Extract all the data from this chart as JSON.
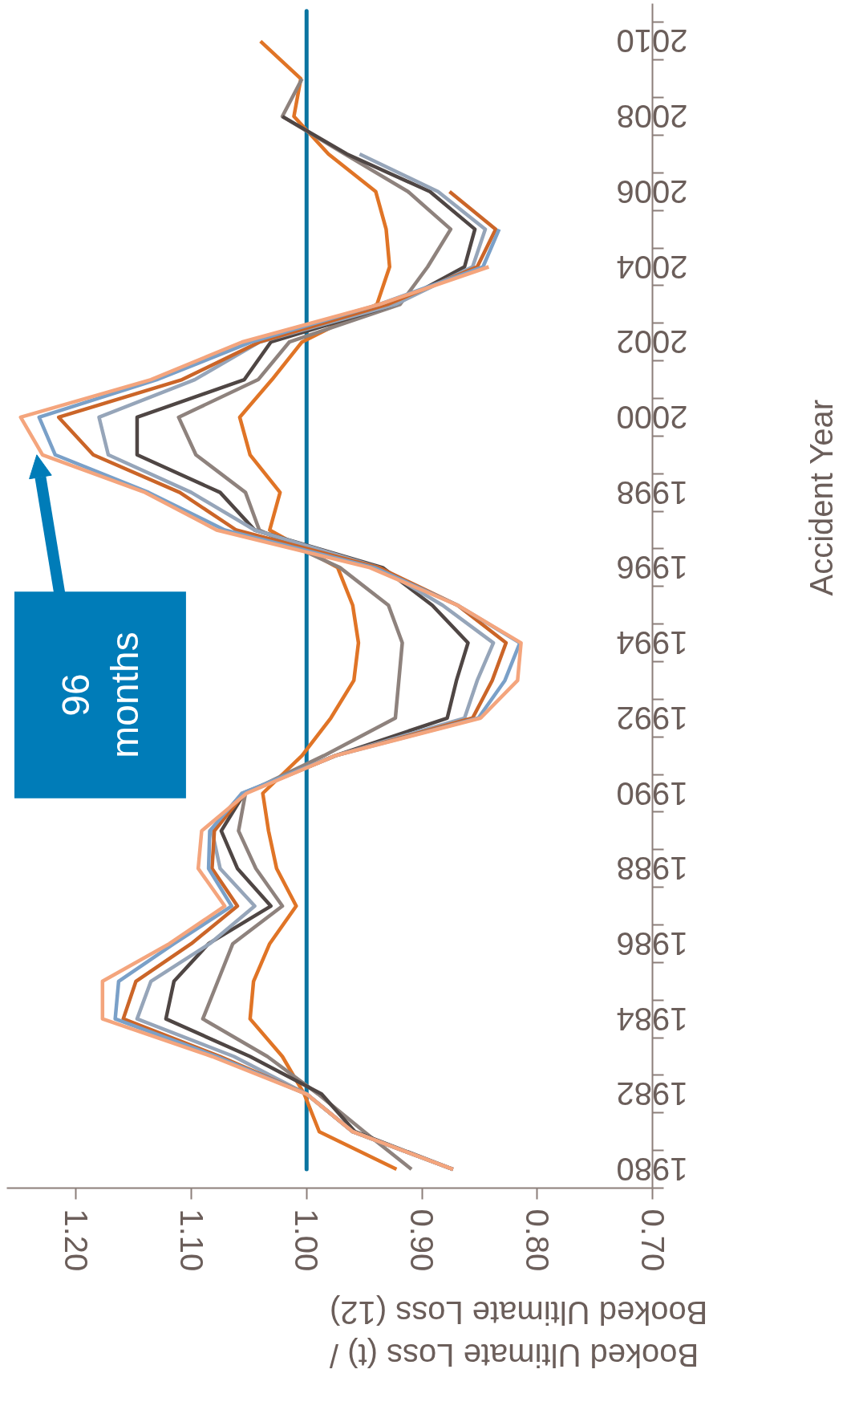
{
  "chart_data": {
    "type": "line",
    "orientation": "horizontal",
    "xlabel": "Booked Ultimate Loss (t) /\nBooked Ultimate Loss (12)",
    "ylabel": "Accident Year",
    "categories": [
      "2010",
      null,
      "2008",
      null,
      "2006",
      null,
      "2004",
      null,
      "2002",
      null,
      "2000",
      null,
      "1998",
      null,
      "1996",
      null,
      "1994",
      null,
      "1992",
      null,
      "1990",
      null,
      "1988",
      null,
      "1986",
      null,
      "1984",
      null,
      "1982",
      null,
      "1980"
    ],
    "series": [
      {
        "color": "#e07426",
        "values": [
          1.04,
          1.005,
          1.011,
          0.981,
          0.94,
          0.931,
          0.928,
          0.939,
          1.004,
          1.03,
          1.058,
          1.049,
          1.023,
          1.032,
          0.973,
          0.96,
          0.955,
          0.959,
          0.979,
          1.004,
          1.038,
          1.033,
          1.026,
          1.009,
          1.032,
          1.046,
          1.049,
          1.021,
          1.002,
          0.989,
          0.922
        ]
      },
      {
        "color": "#8e827d",
        "values": [
          null,
          1.004,
          1.021,
          0.967,
          0.912,
          0.875,
          0.895,
          0.919,
          1.015,
          1.042,
          1.111,
          1.096,
          1.053,
          1.041,
          0.971,
          0.929,
          0.917,
          0.92,
          0.923,
          0.985,
          1.053,
          1.059,
          1.044,
          1.021,
          1.064,
          1.077,
          1.09,
          1.034,
          0.99,
          0.95,
          0.909
        ]
      },
      {
        "color": "#4f4644",
        "values": [
          null,
          null,
          1.021,
          0.965,
          0.893,
          0.854,
          0.863,
          0.923,
          1.031,
          1.054,
          1.147,
          1.147,
          1.075,
          1.045,
          0.934,
          0.891,
          0.86,
          0.87,
          0.878,
          0.975,
          1.054,
          1.074,
          1.06,
          1.031,
          1.085,
          1.115,
          1.122,
          1.049,
          0.987,
          0.958,
          0.873
        ]
      },
      {
        "color": "#96a5b9",
        "values": [
          null,
          null,
          null,
          0.954,
          0.886,
          0.845,
          0.856,
          0.923,
          1.041,
          1.097,
          1.18,
          1.172,
          1.1,
          1.045,
          0.937,
          0.882,
          0.838,
          0.852,
          0.863,
          0.975,
          1.056,
          1.082,
          1.075,
          1.045,
          1.084,
          1.135,
          1.147,
          1.063,
          1.0,
          0.96,
          0.873
        ]
      },
      {
        "color": "#cb6528",
        "values": [
          null,
          null,
          null,
          null,
          0.876,
          0.836,
          0.852,
          0.93,
          1.041,
          1.108,
          1.215,
          1.185,
          1.11,
          1.061,
          0.937,
          0.869,
          0.827,
          0.839,
          0.856,
          0.975,
          1.054,
          1.08,
          1.082,
          1.06,
          1.1,
          1.148,
          1.159,
          1.075,
          1.0,
          0.96,
          0.873
        ]
      },
      {
        "color": "#7aa0c8",
        "values": [
          null,
          null,
          null,
          null,
          null,
          0.833,
          0.847,
          0.937,
          1.048,
          1.13,
          1.232,
          1.218,
          1.137,
          1.071,
          0.941,
          0.869,
          0.815,
          0.828,
          0.851,
          0.975,
          1.056,
          1.084,
          1.085,
          1.065,
          1.115,
          1.163,
          1.166,
          1.078,
          1.0,
          0.96,
          0.873
        ]
      },
      {
        "color": "#f4a57d",
        "values": [
          null,
          null,
          null,
          null,
          null,
          null,
          0.842,
          0.937,
          1.056,
          1.135,
          1.248,
          1.229,
          1.14,
          1.078,
          0.945,
          0.869,
          0.814,
          0.817,
          0.849,
          0.975,
          1.052,
          1.091,
          1.094,
          1.071,
          1.119,
          1.177,
          1.177,
          1.082,
          1.0,
          0.96,
          0.873
        ]
      }
    ],
    "xlim": [
      1.26,
      0.7
    ],
    "xticks": [
      {
        "value": 1.2,
        "label": "1.20"
      },
      {
        "value": 1.1,
        "label": "1.10"
      },
      {
        "value": 1.0,
        "label": "1.00"
      },
      {
        "value": 0.9,
        "label": "0.90"
      },
      {
        "value": 0.8,
        "label": "0.80"
      },
      {
        "value": 0.7,
        "label": "0.70"
      }
    ],
    "ref_lines": [
      {
        "axis": "x",
        "value": 1.0,
        "color": "#0a74a0"
      }
    ],
    "annotations": [
      "96 months"
    ],
    "grid": false,
    "marker": "none",
    "line_style": "solid"
  }
}
